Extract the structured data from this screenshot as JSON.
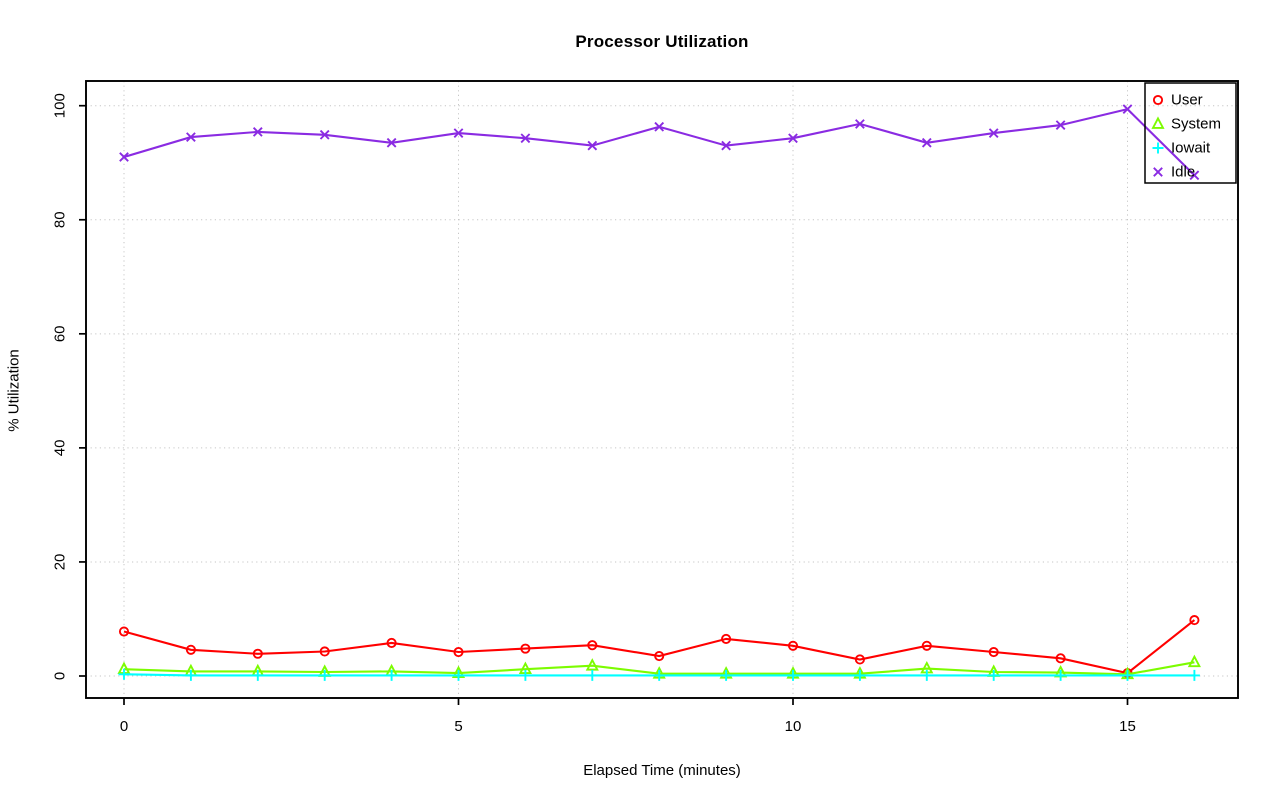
{
  "chart_data": {
    "type": "line",
    "title": "Processor Utilization",
    "xlabel": "Elapsed Time (minutes)",
    "ylabel": "% Utilization",
    "x": [
      0,
      1,
      2,
      3,
      4,
      5,
      6,
      7,
      8,
      9,
      10,
      11,
      12,
      13,
      14,
      15,
      16
    ],
    "xticks": [
      0,
      5,
      10,
      15
    ],
    "yticks": [
      0,
      20,
      40,
      60,
      80,
      100
    ],
    "xlim": [
      -0.6,
      16.6
    ],
    "ylim": [
      -3,
      104
    ],
    "grid": "dotted",
    "grid_color": "#c6c6c6",
    "legend_position": "topright",
    "series": [
      {
        "name": "User",
        "color": "#ff0000",
        "marker": "circle",
        "values": [
          7.8,
          4.6,
          3.9,
          4.3,
          5.8,
          4.2,
          4.8,
          5.4,
          3.5,
          6.5,
          5.3,
          2.9,
          5.3,
          4.2,
          3.1,
          0.5,
          9.8
        ]
      },
      {
        "name": "System",
        "color": "#7cfc00",
        "marker": "triangle",
        "values": [
          1.2,
          0.8,
          0.8,
          0.7,
          0.8,
          0.5,
          1.2,
          1.8,
          0.4,
          0.4,
          0.4,
          0.4,
          1.3,
          0.7,
          0.6,
          0.3,
          2.4
        ]
      },
      {
        "name": "Iowait",
        "color": "#00ffff",
        "marker": "plus",
        "values": [
          0.3,
          0.1,
          0.1,
          0.1,
          0.1,
          0.1,
          0.1,
          0.1,
          0.1,
          0.1,
          0.1,
          0.1,
          0.1,
          0.1,
          0.1,
          0.1,
          0.1
        ]
      },
      {
        "name": "Idle",
        "color": "#8a2be2",
        "marker": "x",
        "values": [
          91.0,
          94.5,
          95.4,
          94.9,
          93.5,
          95.2,
          94.3,
          93.0,
          96.3,
          93.0,
          94.3,
          96.8,
          93.5,
          95.2,
          96.6,
          99.4,
          87.8
        ]
      }
    ]
  }
}
